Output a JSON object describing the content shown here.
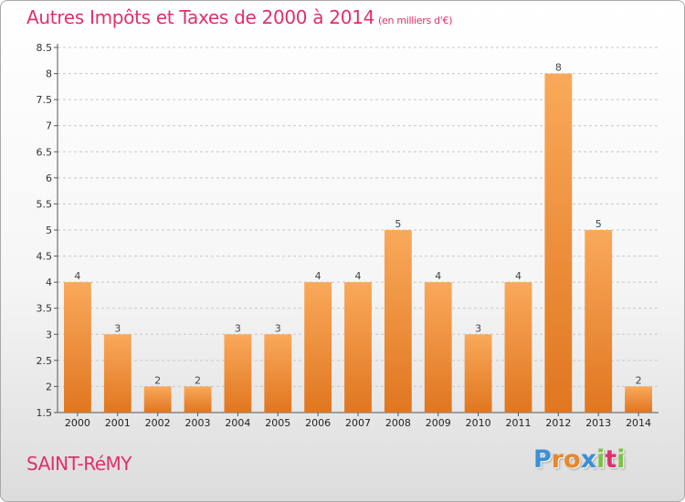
{
  "title": "Autres Impôts et Taxes de 2000 à 2014",
  "subtitle": "(en milliers d'€)",
  "commune": "SAINT-RéMY",
  "logo": {
    "letters": [
      "P",
      "r",
      "o",
      "x",
      "i",
      "t",
      "i"
    ],
    "colors": [
      "#3a8fd8",
      "#e8862a",
      "#e8862a",
      "#3a8fd8",
      "#7cc243",
      "#e0306a",
      "#7cc243"
    ]
  },
  "colors": {
    "title": "#e0306a",
    "bar_light": "#f9a95a",
    "bar_dark": "#e07620",
    "grid": "#c8c8c8"
  },
  "chart_data": {
    "type": "bar",
    "categories": [
      "2000",
      "2001",
      "2002",
      "2003",
      "2004",
      "2005",
      "2006",
      "2007",
      "2008",
      "2009",
      "2010",
      "2011",
      "2012",
      "2013",
      "2014"
    ],
    "values": [
      4,
      3,
      2,
      2,
      3,
      3,
      4,
      4,
      5,
      4,
      3,
      4,
      8,
      5,
      2
    ],
    "data_labels": [
      "4",
      "3",
      "2",
      "2",
      "3",
      "3",
      "4",
      "4",
      "5",
      "4",
      "3",
      "4",
      "8",
      "5",
      "2"
    ],
    "yticks": [
      "1.5",
      "2",
      "2.5",
      "3",
      "3.5",
      "4",
      "4.5",
      "5",
      "5.5",
      "6",
      "6.5",
      "7",
      "7.5",
      "8",
      "8.5"
    ],
    "ylim": [
      1.5,
      8.5
    ],
    "grid": true,
    "xlabel": "",
    "ylabel": ""
  }
}
